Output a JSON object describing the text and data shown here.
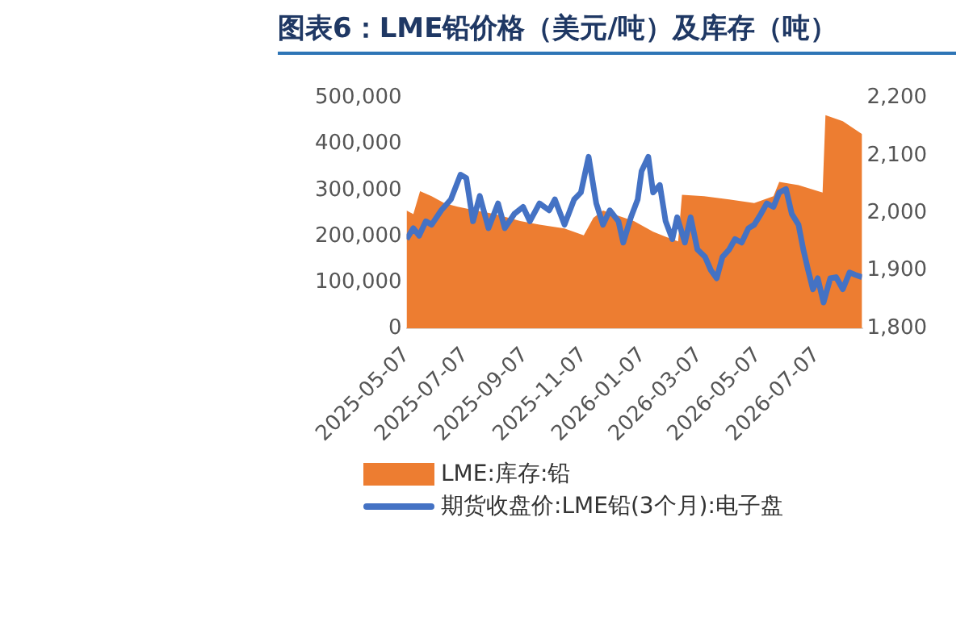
{
  "chart_data": {
    "type": "area",
    "title": "图表6：LME铅价格（美元/吨）及库存（吨）",
    "xlim": [
      "2025-05-07",
      "2026-08-23"
    ],
    "xticks": [
      "2025-05-07",
      "2025-07-07",
      "2025-09-07",
      "2025-11-07",
      "2026-01-07",
      "2026-03-07",
      "2026-05-07",
      "2026-07-07"
    ],
    "ylim": [
      0,
      500000
    ],
    "yticks": [
      {
        "value": 0,
        "label": "0"
      },
      {
        "value": 100000,
        "label": "100,000"
      },
      {
        "value": 200000,
        "label": "200,000"
      },
      {
        "value": 300000,
        "label": "300,000"
      },
      {
        "value": 400000,
        "label": "400,000"
      },
      {
        "value": 500000,
        "label": "500,000"
      }
    ],
    "y2lim": [
      1800,
      2200
    ],
    "y2ticks": [
      {
        "value": 1800,
        "label": "1,800"
      },
      {
        "value": 1900,
        "label": "1,900"
      },
      {
        "value": 2000,
        "label": "2,000"
      },
      {
        "value": 2100,
        "label": "2,100"
      },
      {
        "value": 2200,
        "label": "2,200"
      }
    ],
    "grid": false,
    "legend": "bottom",
    "marker": "none",
    "series": [
      {
        "name": "LME:库存:铅",
        "color": "#ed7d31",
        "x": [
          "2025-05-07",
          "2025-05-14",
          "2025-05-21",
          "2025-06-02",
          "2025-06-15",
          "2025-06-29",
          "2025-07-18",
          "2025-08-07",
          "2025-09-02",
          "2025-09-22",
          "2025-10-18",
          "2025-11-07",
          "2025-11-17",
          "2025-11-27",
          "2025-12-29",
          "2026-01-18",
          "2026-01-31",
          "2026-02-13",
          "2026-02-17",
          "2026-03-12",
          "2026-04-07",
          "2026-05-03",
          "2026-05-23",
          "2026-05-29",
          "2026-06-18",
          "2026-07-13",
          "2026-07-16",
          "2026-08-03",
          "2026-08-23"
        ],
        "values": [
          256000,
          248000,
          298000,
          287000,
          272000,
          264000,
          256000,
          248000,
          233000,
          225000,
          217000,
          202000,
          240000,
          256000,
          233000,
          210000,
          199000,
          189000,
          290000,
          287000,
          280000,
          272000,
          287000,
          318000,
          311000,
          295000,
          463000,
          450000,
          422000
        ]
      },
      {
        "type": "line",
        "name": "期货收盘价:LME铅(3个月):电子盘",
        "color": "#4472c4",
        "axis": "y2",
        "x": [
          "2025-05-07",
          "2025-05-14",
          "2025-05-20",
          "2025-05-27",
          "2025-06-02",
          "2025-06-12",
          "2025-06-22",
          "2025-07-02",
          "2025-07-08",
          "2025-07-15",
          "2025-07-22",
          "2025-07-31",
          "2025-08-10",
          "2025-08-17",
          "2025-08-27",
          "2025-09-05",
          "2025-09-12",
          "2025-09-22",
          "2025-10-02",
          "2025-10-08",
          "2025-10-18",
          "2025-10-28",
          "2025-11-04",
          "2025-11-12",
          "2025-11-20",
          "2025-11-27",
          "2025-12-04",
          "2025-12-13",
          "2025-12-18",
          "2025-12-26",
          "2026-01-02",
          "2026-01-06",
          "2026-01-13",
          "2026-01-18",
          "2026-01-25",
          "2026-01-31",
          "2026-02-07",
          "2026-02-12",
          "2026-02-20",
          "2026-02-26",
          "2026-03-05",
          "2026-03-13",
          "2026-03-19",
          "2026-03-25",
          "2026-03-31",
          "2026-04-07",
          "2026-04-13",
          "2026-04-20",
          "2026-04-27",
          "2026-05-03",
          "2026-05-10",
          "2026-05-16",
          "2026-05-23",
          "2026-05-29",
          "2026-06-05",
          "2026-06-11",
          "2026-06-18",
          "2026-06-23",
          "2026-06-28",
          "2026-07-03",
          "2026-07-08",
          "2026-07-14",
          "2026-07-21",
          "2026-07-27",
          "2026-08-03",
          "2026-08-10",
          "2026-08-16",
          "2026-08-23"
        ],
        "values": [
          1955,
          1974,
          1961,
          1986,
          1980,
          2005,
          2024,
          2067,
          2061,
          1986,
          2030,
          1974,
          2017,
          1974,
          1999,
          2011,
          1986,
          2017,
          2005,
          2024,
          1980,
          2024,
          2036,
          2098,
          2017,
          1980,
          2005,
          1986,
          1949,
          1993,
          2024,
          2073,
          2098,
          2036,
          2049,
          1986,
          1955,
          1993,
          1949,
          1993,
          1937,
          1924,
          1901,
          1887,
          1924,
          1937,
          1955,
          1949,
          1974,
          1980,
          1999,
          2017,
          2011,
          2036,
          2042,
          1999,
          1980,
          1937,
          1901,
          1868,
          1887,
          1845,
          1887,
          1889,
          1868,
          1897,
          1893,
          1889
        ]
      }
    ]
  }
}
